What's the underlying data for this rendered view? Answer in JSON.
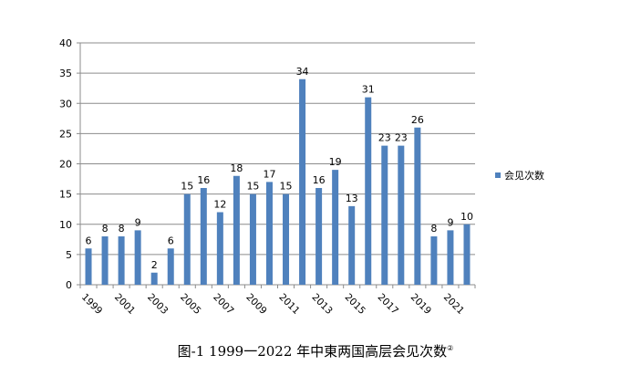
{
  "chart_data": {
    "type": "bar",
    "title": "",
    "xlabel": "",
    "ylabel": "",
    "ylim": [
      0,
      40
    ],
    "yticks": [
      0,
      5,
      10,
      15,
      20,
      25,
      30,
      35,
      40
    ],
    "categories": [
      "1999",
      "2000",
      "2001",
      "2002",
      "2003",
      "2004",
      "2005",
      "2006",
      "2007",
      "2008",
      "2009",
      "2010",
      "2011",
      "2012",
      "2013",
      "2014",
      "2015",
      "2016",
      "2017",
      "2018",
      "2019",
      "2020",
      "2021",
      "2022"
    ],
    "xtick_labels_shown": [
      "1999",
      "2001",
      "2003",
      "2005",
      "2007",
      "2009",
      "2011",
      "2013",
      "2015",
      "2017",
      "2019",
      "2021"
    ],
    "series": [
      {
        "name": "会见次数",
        "color": "#4F81BD",
        "values": [
          6,
          8,
          8,
          9,
          2,
          6,
          15,
          16,
          12,
          18,
          15,
          17,
          15,
          34,
          16,
          19,
          13,
          31,
          23,
          23,
          26,
          8,
          9,
          10
        ]
      }
    ],
    "grid": true,
    "legend_position": "right",
    "data_labels": true
  },
  "caption": {
    "text": "图-1 1999一2022 年中東两国高层会见次数",
    "footnote_mark": "②"
  }
}
